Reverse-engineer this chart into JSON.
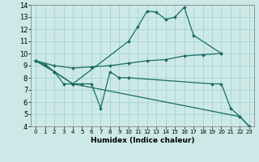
{
  "xlabel": "Humidex (Indice chaleur)",
  "xlim": [
    -0.5,
    23.5
  ],
  "ylim": [
    4,
    14
  ],
  "yticks": [
    4,
    5,
    6,
    7,
    8,
    9,
    10,
    11,
    12,
    13,
    14
  ],
  "xticks": [
    0,
    1,
    2,
    3,
    4,
    5,
    6,
    7,
    8,
    9,
    10,
    11,
    12,
    13,
    14,
    15,
    16,
    17,
    18,
    19,
    20,
    21,
    22,
    23
  ],
  "bg_color": "#cce9e7",
  "grid_color": "#9ecfcb",
  "line_color": "#1a6b65",
  "lines": [
    {
      "x": [
        0,
        1,
        2,
        4,
        10,
        11,
        12,
        13,
        14,
        15,
        16,
        17,
        20
      ],
      "y": [
        9.4,
        9.1,
        8.5,
        7.5,
        11.0,
        12.2,
        13.5,
        13.4,
        12.8,
        13.0,
        13.8,
        11.5,
        10.0
      ]
    },
    {
      "x": [
        0,
        2,
        4,
        6,
        8,
        10,
        12,
        14,
        16,
        18,
        20
      ],
      "y": [
        9.4,
        9.0,
        8.8,
        8.9,
        9.0,
        9.2,
        9.4,
        9.5,
        9.8,
        9.9,
        10.0
      ]
    },
    {
      "x": [
        0,
        2,
        3,
        4,
        5,
        6,
        7,
        8,
        9,
        10,
        19,
        20,
        21,
        22,
        23
      ],
      "y": [
        9.4,
        8.5,
        7.5,
        7.5,
        7.5,
        7.5,
        5.5,
        8.5,
        8.0,
        8.0,
        7.5,
        7.5,
        5.5,
        4.8,
        4.0
      ]
    },
    {
      "x": [
        0,
        2,
        4,
        22,
        23
      ],
      "y": [
        9.4,
        8.5,
        7.5,
        4.8,
        4.0
      ]
    }
  ]
}
